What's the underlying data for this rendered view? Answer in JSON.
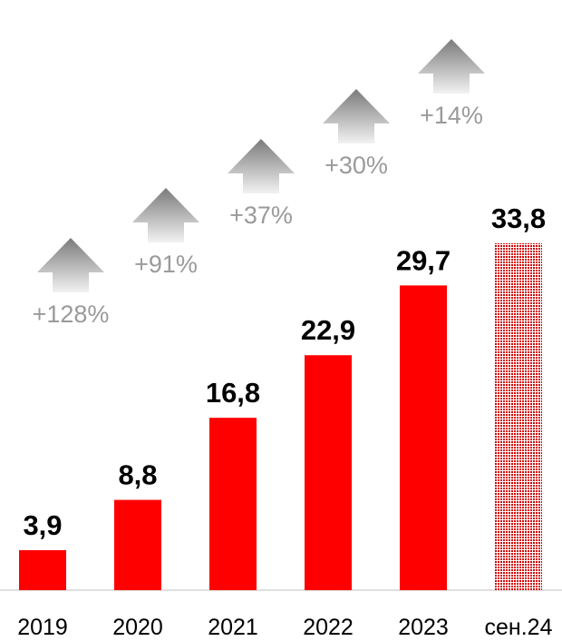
{
  "chart_data": {
    "type": "bar",
    "categories": [
      "2019",
      "2020",
      "2021",
      "2022",
      "2023",
      "сен.24"
    ],
    "values": [
      3.9,
      8.8,
      16.8,
      22.9,
      29.7,
      33.8
    ],
    "value_labels": [
      "3,9",
      "8,8",
      "16,8",
      "22,9",
      "29,7",
      "33,8"
    ],
    "growth_labels": [
      "+128%",
      "+91%",
      "+37%",
      "+30%",
      "+14%"
    ],
    "grid": false,
    "legend": "none",
    "colors": {
      "bar": "#ff0000",
      "bar_estimate_pattern": "#d40000",
      "growth_text": "#9a9a9a",
      "arrow_top": "#7a7a7a",
      "arrow_bottom": "#f2f2f2",
      "axis": "#bfbfbf"
    }
  }
}
